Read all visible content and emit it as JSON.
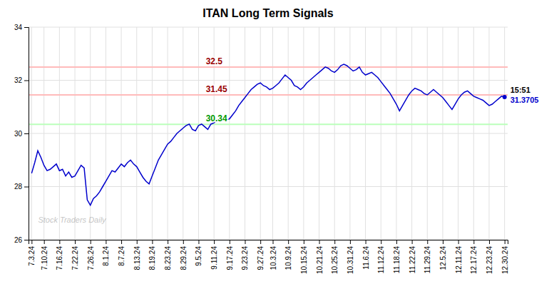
{
  "chart_data": {
    "type": "line",
    "title": "ITAN Long Term Signals",
    "categories": [
      "7.3.24",
      null,
      null,
      null,
      "7.10.24",
      null,
      null,
      null,
      null,
      "7.16.24",
      null,
      null,
      null,
      null,
      "7.22.24",
      null,
      null,
      null,
      null,
      "7.26.24",
      null,
      null,
      null,
      null,
      "8.1.24",
      null,
      null,
      null,
      null,
      "8.7.24",
      null,
      null,
      null,
      null,
      "8.13.24",
      null,
      null,
      null,
      null,
      "8.19.24",
      null,
      null,
      null,
      null,
      "8.23.24",
      null,
      null,
      null,
      null,
      "8.29.24",
      null,
      null,
      null,
      null,
      "9.5.24",
      null,
      null,
      null,
      null,
      "9.11.24",
      null,
      null,
      null,
      null,
      "9.17.24",
      null,
      null,
      null,
      null,
      "9.23.24",
      null,
      null,
      null,
      null,
      "9.27.24",
      null,
      null,
      null,
      "10.3.24",
      null,
      null,
      null,
      null,
      "10.9.24",
      null,
      null,
      null,
      null,
      "10.15.24",
      null,
      null,
      null,
      null,
      "10.21.24",
      null,
      null,
      null,
      null,
      "10.25.24",
      null,
      null,
      null,
      null,
      "10.31.24",
      null,
      null,
      null,
      null,
      "11.6.24",
      null,
      null,
      null,
      null,
      "11.12.24",
      null,
      null,
      null,
      null,
      "11.18.24",
      null,
      null,
      null,
      null,
      "11.22.24",
      null,
      null,
      null,
      null,
      "11.29.24",
      null,
      null,
      null,
      null,
      "12.5.24",
      null,
      null,
      null,
      null,
      "12.11.24",
      null,
      null,
      null,
      null,
      "12.17.24",
      null,
      null,
      null,
      null,
      "12.23.24",
      null,
      null,
      null,
      null,
      "12.30.24"
    ],
    "values": [
      28.5,
      28.9,
      29.35,
      29.1,
      28.8,
      28.6,
      28.65,
      28.75,
      28.85,
      28.6,
      28.65,
      28.4,
      28.55,
      28.35,
      28.4,
      28.6,
      28.8,
      28.7,
      27.5,
      27.3,
      27.55,
      27.65,
      27.8,
      28.0,
      28.2,
      28.4,
      28.6,
      28.55,
      28.7,
      28.85,
      28.75,
      28.9,
      29.0,
      28.85,
      28.75,
      28.55,
      28.35,
      28.2,
      28.1,
      28.4,
      28.7,
      29.0,
      29.2,
      29.4,
      29.6,
      29.7,
      29.85,
      30.0,
      30.1,
      30.2,
      30.3,
      30.35,
      30.15,
      30.1,
      30.3,
      30.35,
      30.25,
      30.15,
      30.35,
      30.4,
      30.5,
      30.55,
      30.6,
      30.5,
      30.55,
      30.7,
      30.85,
      31.05,
      31.2,
      31.35,
      31.5,
      31.65,
      31.75,
      31.85,
      31.9,
      31.8,
      31.75,
      31.65,
      31.7,
      31.8,
      31.9,
      32.05,
      32.2,
      32.1,
      32.0,
      31.8,
      31.75,
      31.65,
      31.75,
      31.9,
      32.0,
      32.1,
      32.2,
      32.3,
      32.4,
      32.5,
      32.45,
      32.35,
      32.3,
      32.4,
      32.55,
      32.6,
      32.55,
      32.45,
      32.35,
      32.4,
      32.5,
      32.3,
      32.2,
      32.25,
      32.3,
      32.2,
      32.1,
      31.95,
      31.8,
      31.65,
      31.5,
      31.3,
      31.1,
      30.85,
      31.05,
      31.25,
      31.45,
      31.6,
      31.7,
      31.65,
      31.6,
      31.5,
      31.45,
      31.55,
      31.65,
      31.55,
      31.45,
      31.35,
      31.2,
      31.05,
      30.9,
      31.1,
      31.3,
      31.45,
      31.55,
      31.6,
      31.5,
      31.4,
      31.35,
      31.3,
      31.25,
      31.15,
      31.05,
      31.1,
      31.2,
      31.3,
      31.4,
      31.3705
    ],
    "color": "#0000cc",
    "ylim": [
      26,
      34
    ],
    "yticks": [
      26,
      28,
      30,
      32,
      34
    ],
    "grid": true,
    "reference_lines": [
      {
        "value": 32.5,
        "label": "32.5",
        "color": "#ffbbbb"
      },
      {
        "value": 31.45,
        "label": "31.45",
        "color": "#ffbbbb"
      },
      {
        "value": 30.34,
        "label": "30.34",
        "color": "#bbffbb"
      }
    ],
    "annotations": [
      {
        "text": "15:51"
      }
    ],
    "watermark": "Stock Traders Daily"
  }
}
